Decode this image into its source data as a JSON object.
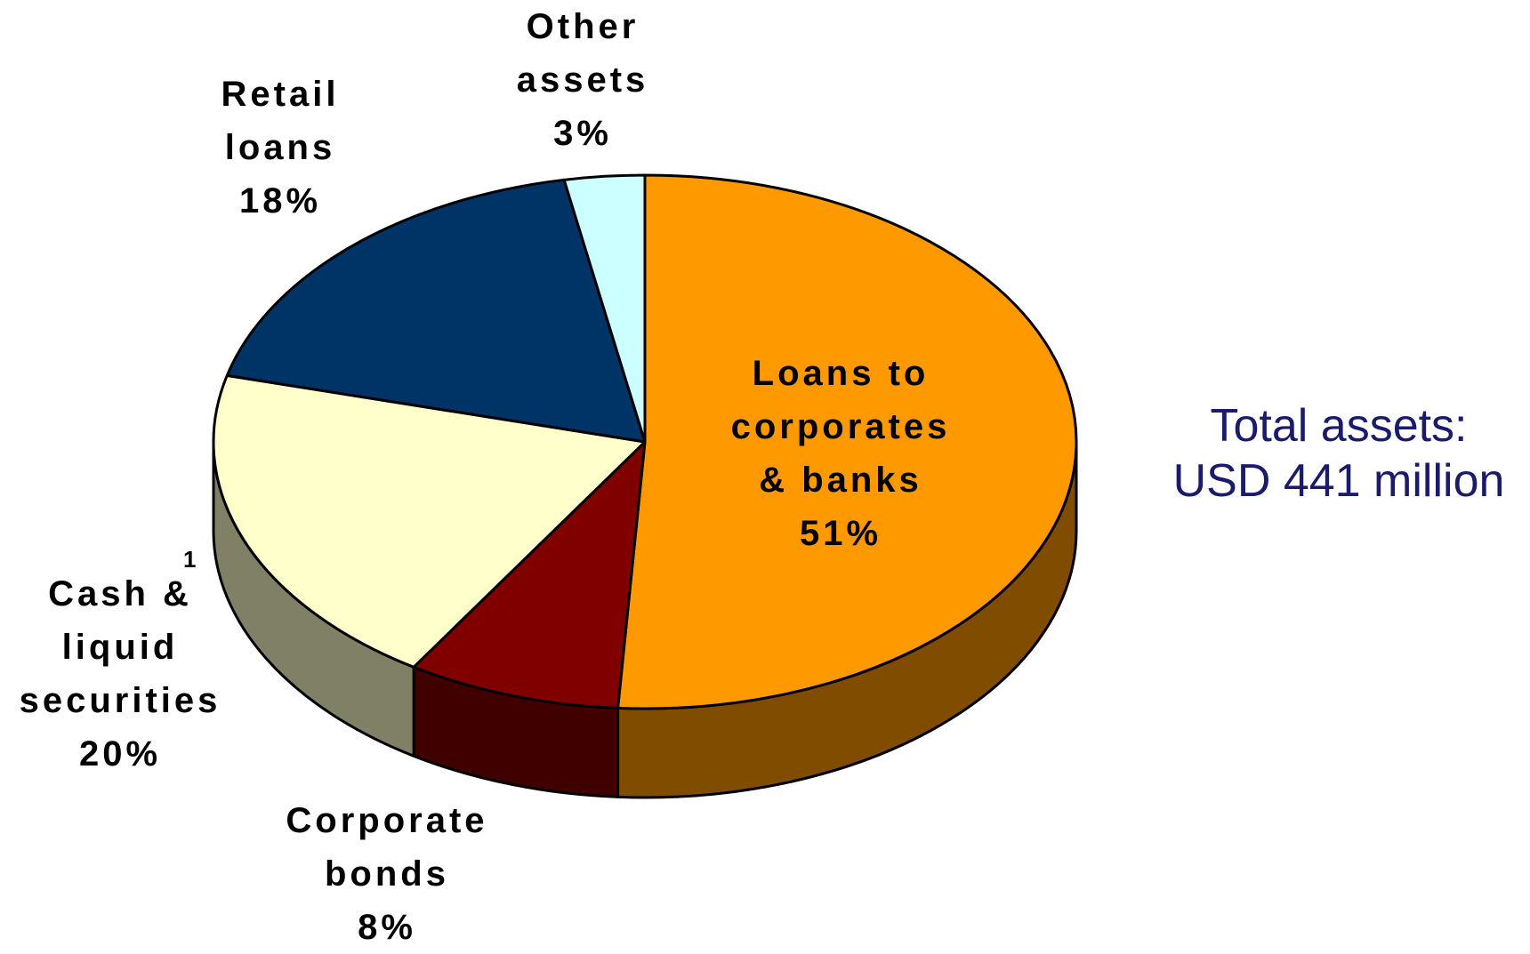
{
  "chart_data": {
    "type": "pie",
    "style": "3d",
    "slices": [
      {
        "name": "Loans to corporates & banks",
        "value": 51,
        "label": "51%",
        "lines": [
          "Loans to",
          "corporates",
          "& banks",
          "51%"
        ],
        "color": "#FF9900",
        "side_color": "#7F4C00"
      },
      {
        "name": "Corporate bonds",
        "value": 8,
        "label": "8%",
        "lines": [
          "Corporate",
          "bonds",
          "8%"
        ],
        "color": "#800000",
        "side_color": "#400000"
      },
      {
        "name": "Cash & liquid securities",
        "value": 20,
        "label": "20%",
        "lines": [
          "Cash &",
          "liquid",
          "securities",
          "20%"
        ],
        "footnote": "1",
        "color": "#FFFFCC",
        "side_color": "#808066"
      },
      {
        "name": "Retail loans",
        "value": 18,
        "label": "18%",
        "lines": [
          "Retail",
          "loans",
          "18%"
        ],
        "color": "#003366",
        "side_color": "#001A33"
      },
      {
        "name": "Other assets",
        "value": 3,
        "label": "3%",
        "lines": [
          "Other",
          "assets",
          "3%"
        ],
        "color": "#CCFFFF",
        "side_color": "#668080"
      }
    ]
  },
  "total": {
    "line1": "Total assets:",
    "line2": "USD 441 million"
  }
}
